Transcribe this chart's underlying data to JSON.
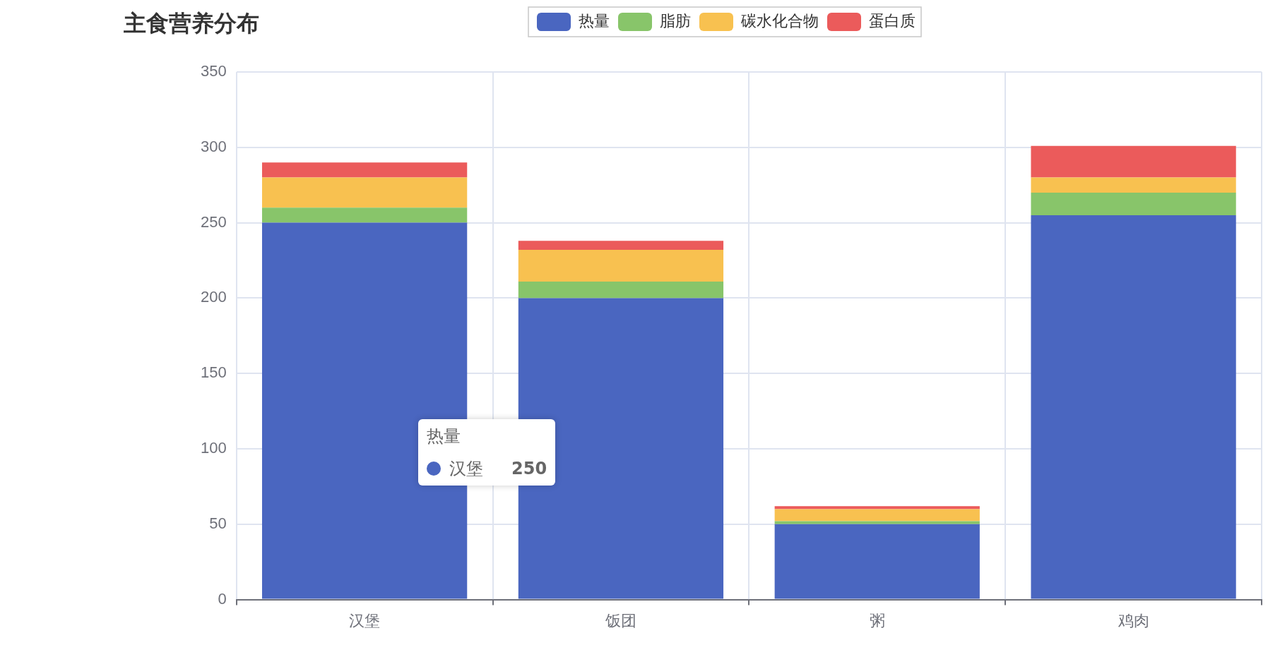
{
  "chart_data": {
    "type": "bar",
    "title": "主食营养分布",
    "stacked": true,
    "categories": [
      "汉堡",
      "饭团",
      "粥",
      "鸡肉"
    ],
    "series": [
      {
        "name": "热量",
        "color": "#4a66c0",
        "values": [
          250,
          200,
          50,
          255
        ]
      },
      {
        "name": "脂肪",
        "color": "#88c56a",
        "values": [
          10,
          11,
          2,
          15
        ]
      },
      {
        "name": "碳水化合物",
        "color": "#f8c150",
        "values": [
          20,
          21,
          8,
          10
        ]
      },
      {
        "name": "蛋白质",
        "color": "#eb5b5b",
        "values": [
          10,
          6,
          2,
          21
        ]
      }
    ],
    "ylim": [
      0,
      350
    ],
    "yticks": [
      0,
      50,
      100,
      150,
      200,
      250,
      300,
      350
    ],
    "grid": true,
    "legend": "top",
    "annotations": [
      "热量",
      "汉堡",
      "250"
    ]
  }
}
